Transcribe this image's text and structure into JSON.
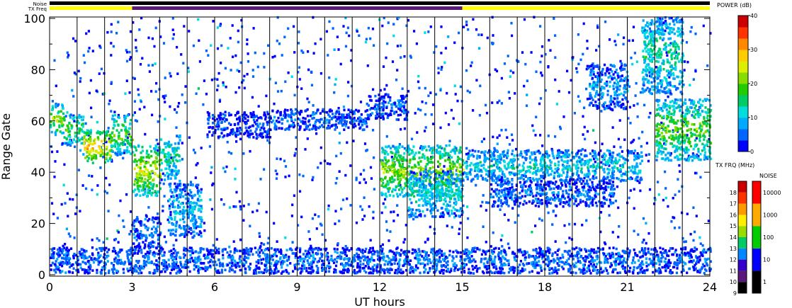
{
  "header": {
    "noise_label": "Noise",
    "txfreq_label": "TX Freq"
  },
  "colors": {
    "noise_bar": "#000000",
    "txfreq_bar_day": "#ffff00",
    "txfreq_bar_night": "#5a1a7a",
    "axis": "#000000",
    "grid": "#000000"
  },
  "txfreq_bar_segments": [
    {
      "start": 0,
      "end": 3,
      "color": "#ffff00"
    },
    {
      "start": 3,
      "end": 15,
      "color": "#5a1a7a"
    },
    {
      "start": 15,
      "end": 24,
      "color": "#ffff00"
    }
  ],
  "chart_data": {
    "type": "heatmap",
    "title": "",
    "xlabel": "UT hours",
    "ylabel": "Range Gate",
    "xlim": [
      0,
      24
    ],
    "ylim": [
      0,
      100
    ],
    "x_ticks": [
      0,
      3,
      6,
      9,
      12,
      15,
      18,
      21,
      24
    ],
    "y_ticks": [
      0,
      20,
      40,
      60,
      80,
      100
    ],
    "hour_lines": [
      1,
      2,
      3,
      4,
      5,
      6,
      7,
      8,
      9,
      10,
      11,
      12,
      13,
      14,
      15,
      16,
      17,
      18,
      19,
      20,
      21,
      22,
      23
    ],
    "power_colorbar": {
      "title": "POWER (dB)",
      "ticks": [
        "0",
        "10",
        "20",
        "30",
        "40"
      ],
      "range": [
        0,
        40
      ],
      "colors": [
        "#0000ff",
        "#0066ff",
        "#00aaff",
        "#00dddd",
        "#00cc66",
        "#22cc00",
        "#88dd00",
        "#ddee00",
        "#ffcc00",
        "#ff8800",
        "#ff3300",
        "#cc0000"
      ]
    },
    "txfreq_colorbar": {
      "title": "TX FRQ (MHz)",
      "ticks": [
        "9",
        "10",
        "11",
        "12",
        "13",
        "14",
        "15",
        "16",
        "17",
        "18"
      ],
      "colors": [
        "#000000",
        "#5a1a7a",
        "#3300cc",
        "#0088ff",
        "#00cc66",
        "#99dd00",
        "#ffee00",
        "#ff9900",
        "#ff3300",
        "#cc0000"
      ]
    },
    "noise_colorbar": {
      "title": "NOISE",
      "ticks": [
        "1",
        "10",
        "100",
        "1000",
        "10000"
      ],
      "colors": [
        "#000000",
        "#0000ff",
        "#00cc00",
        "#ffaa00",
        "#ff0000"
      ]
    },
    "echo_regions": [
      {
        "x0": 0.0,
        "x1": 0.5,
        "y0": 54,
        "y1": 66,
        "power": 22
      },
      {
        "x0": 0.5,
        "x1": 1.2,
        "y0": 50,
        "y1": 62,
        "power": 18
      },
      {
        "x0": 1.2,
        "x1": 2.2,
        "y0": 43,
        "y1": 56,
        "power": 30
      },
      {
        "x0": 2.2,
        "x1": 3.0,
        "y0": 46,
        "y1": 62,
        "power": 20
      },
      {
        "x0": 3.0,
        "x1": 4.0,
        "y0": 30,
        "y1": 50,
        "power": 25
      },
      {
        "x0": 4.0,
        "x1": 4.7,
        "y0": 36,
        "y1": 54,
        "power": 14
      },
      {
        "x0": 4.3,
        "x1": 5.5,
        "y0": 14,
        "y1": 35,
        "power": 10
      },
      {
        "x0": 3.0,
        "x1": 4.0,
        "y0": 10,
        "y1": 22,
        "power": 6
      },
      {
        "x0": 5.7,
        "x1": 8.0,
        "y0": 53,
        "y1": 63,
        "power": 4
      },
      {
        "x0": 8.0,
        "x1": 11.5,
        "y0": 56,
        "y1": 64,
        "power": 5
      },
      {
        "x0": 11.5,
        "x1": 13.0,
        "y0": 60,
        "y1": 70,
        "power": 5
      },
      {
        "x0": 12.0,
        "x1": 15.0,
        "y0": 30,
        "y1": 50,
        "power": 22
      },
      {
        "x0": 13.0,
        "x1": 15.0,
        "y0": 22,
        "y1": 40,
        "power": 12
      },
      {
        "x0": 15.0,
        "x1": 21.5,
        "y0": 36,
        "y1": 48,
        "power": 12
      },
      {
        "x0": 16.0,
        "x1": 20.5,
        "y0": 26,
        "y1": 36,
        "power": 6
      },
      {
        "x0": 19.5,
        "x1": 21.0,
        "y0": 64,
        "y1": 82,
        "power": 8
      },
      {
        "x0": 21.5,
        "x1": 23.0,
        "y0": 70,
        "y1": 100,
        "power": 14
      },
      {
        "x0": 22.0,
        "x1": 24.0,
        "y0": 44,
        "y1": 68,
        "power": 20
      },
      {
        "x0": 0.0,
        "x1": 24.0,
        "y0": 0,
        "y1": 10,
        "power": 6
      }
    ]
  }
}
